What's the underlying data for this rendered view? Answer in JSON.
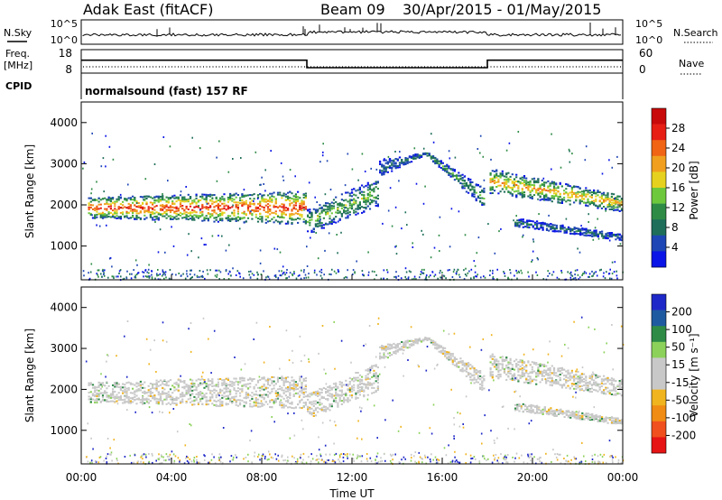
{
  "header": {
    "station": "Adak East (fitACF)",
    "beam": "Beam 09",
    "dates": "30/Apr/2015 - 01/May/2015"
  },
  "strips": {
    "nsky_label": "N.Sky",
    "nsky_ticks": [
      "10^5",
      "10^0"
    ],
    "nsearch_label": "N.Search",
    "nsearch_ticks": [
      "10^5",
      "10^0"
    ],
    "freq_label": "Freq.",
    "freq_unit": "[MHz]",
    "freq_ticks": [
      "18",
      "8"
    ],
    "nave_label": "Nave",
    "nave_ticks": [
      "60",
      "0"
    ],
    "cpid_label": "CPID",
    "cpid_value": "normalsound (fast) 157 RF"
  },
  "chart_data": [
    {
      "type": "line",
      "name": "frequency-strip",
      "x_unit": "hours UT",
      "series": [
        {
          "name": "Freq.",
          "x": [
            0,
            10,
            10,
            18,
            18,
            24
          ],
          "values": [
            13.5,
            13.5,
            10.3,
            10.3,
            13.5,
            13.5
          ]
        }
      ],
      "ylim": [
        8,
        18
      ]
    },
    {
      "type": "heatmap",
      "name": "power-panel",
      "ylabel": "Slant Range [km]",
      "yticks": [
        "1000",
        "2000",
        "3000",
        "4000"
      ],
      "ylim": [
        180,
        4500
      ],
      "xlim": [
        0,
        24
      ],
      "colorbar": {
        "label": "Power [dB]",
        "ticks": [
          "4",
          "8",
          "12",
          "16",
          "20",
          "24",
          "28"
        ],
        "colors": [
          "#0a14e6",
          "#1e46b4",
          "#1e6e5a",
          "#2e8b46",
          "#6ec83c",
          "#e6d21e",
          "#f0a01e",
          "#f06414",
          "#e61e14",
          "#c80a0a"
        ]
      },
      "bands_km": [
        {
          "x": [
            0.3,
            10.0
          ],
          "low": [
            1700,
            1550
          ],
          "high": [
            2200,
            2350
          ],
          "peak_db": 26
        },
        {
          "x": [
            10.0,
            13.2
          ],
          "low": [
            1300,
            2000
          ],
          "high": [
            1900,
            2700
          ],
          "peak_db": 14
        },
        {
          "x": [
            13.2,
            15.3
          ],
          "low": [
            2700,
            3250
          ],
          "high": [
            3100,
            3300
          ],
          "peak_db": 8
        },
        {
          "x": [
            15.3,
            17.9
          ],
          "low": [
            3200,
            1900
          ],
          "high": [
            3300,
            2400
          ],
          "peak_db": 12
        },
        {
          "x": [
            18.1,
            24.0
          ],
          "low": [
            2300,
            1850
          ],
          "high": [
            2900,
            2250
          ],
          "peak_db": 20
        },
        {
          "x": [
            19.2,
            24.0
          ],
          "low": [
            1500,
            1150
          ],
          "high": [
            1700,
            1300
          ],
          "peak_db": 8
        }
      ]
    },
    {
      "type": "heatmap",
      "name": "velocity-panel",
      "ylabel": "Slant Range [km]",
      "yticks": [
        "1000",
        "2000",
        "3000",
        "4000"
      ],
      "ylim": [
        180,
        4500
      ],
      "xlim": [
        0,
        24
      ],
      "xlabel": "Time UT",
      "xticks": [
        "00:00",
        "04:00",
        "08:00",
        "12:00",
        "16:00",
        "20:00",
        "00:00"
      ],
      "colorbar": {
        "label": "Velocity [m s⁻¹]",
        "ticks": [
          "200",
          "100",
          "50",
          "15",
          "-15",
          "-50",
          "-100",
          "-200"
        ],
        "colors": [
          "#1e28c8",
          "#1e5aa0",
          "#2e8b46",
          "#8cd25a",
          "#c8c8c8",
          "#c8c8c8",
          "#f0b41e",
          "#f08c14",
          "#f0501e",
          "#e61414"
        ]
      },
      "dominant_velocity": "-15 to 15 (ground scatter, grey)"
    }
  ]
}
